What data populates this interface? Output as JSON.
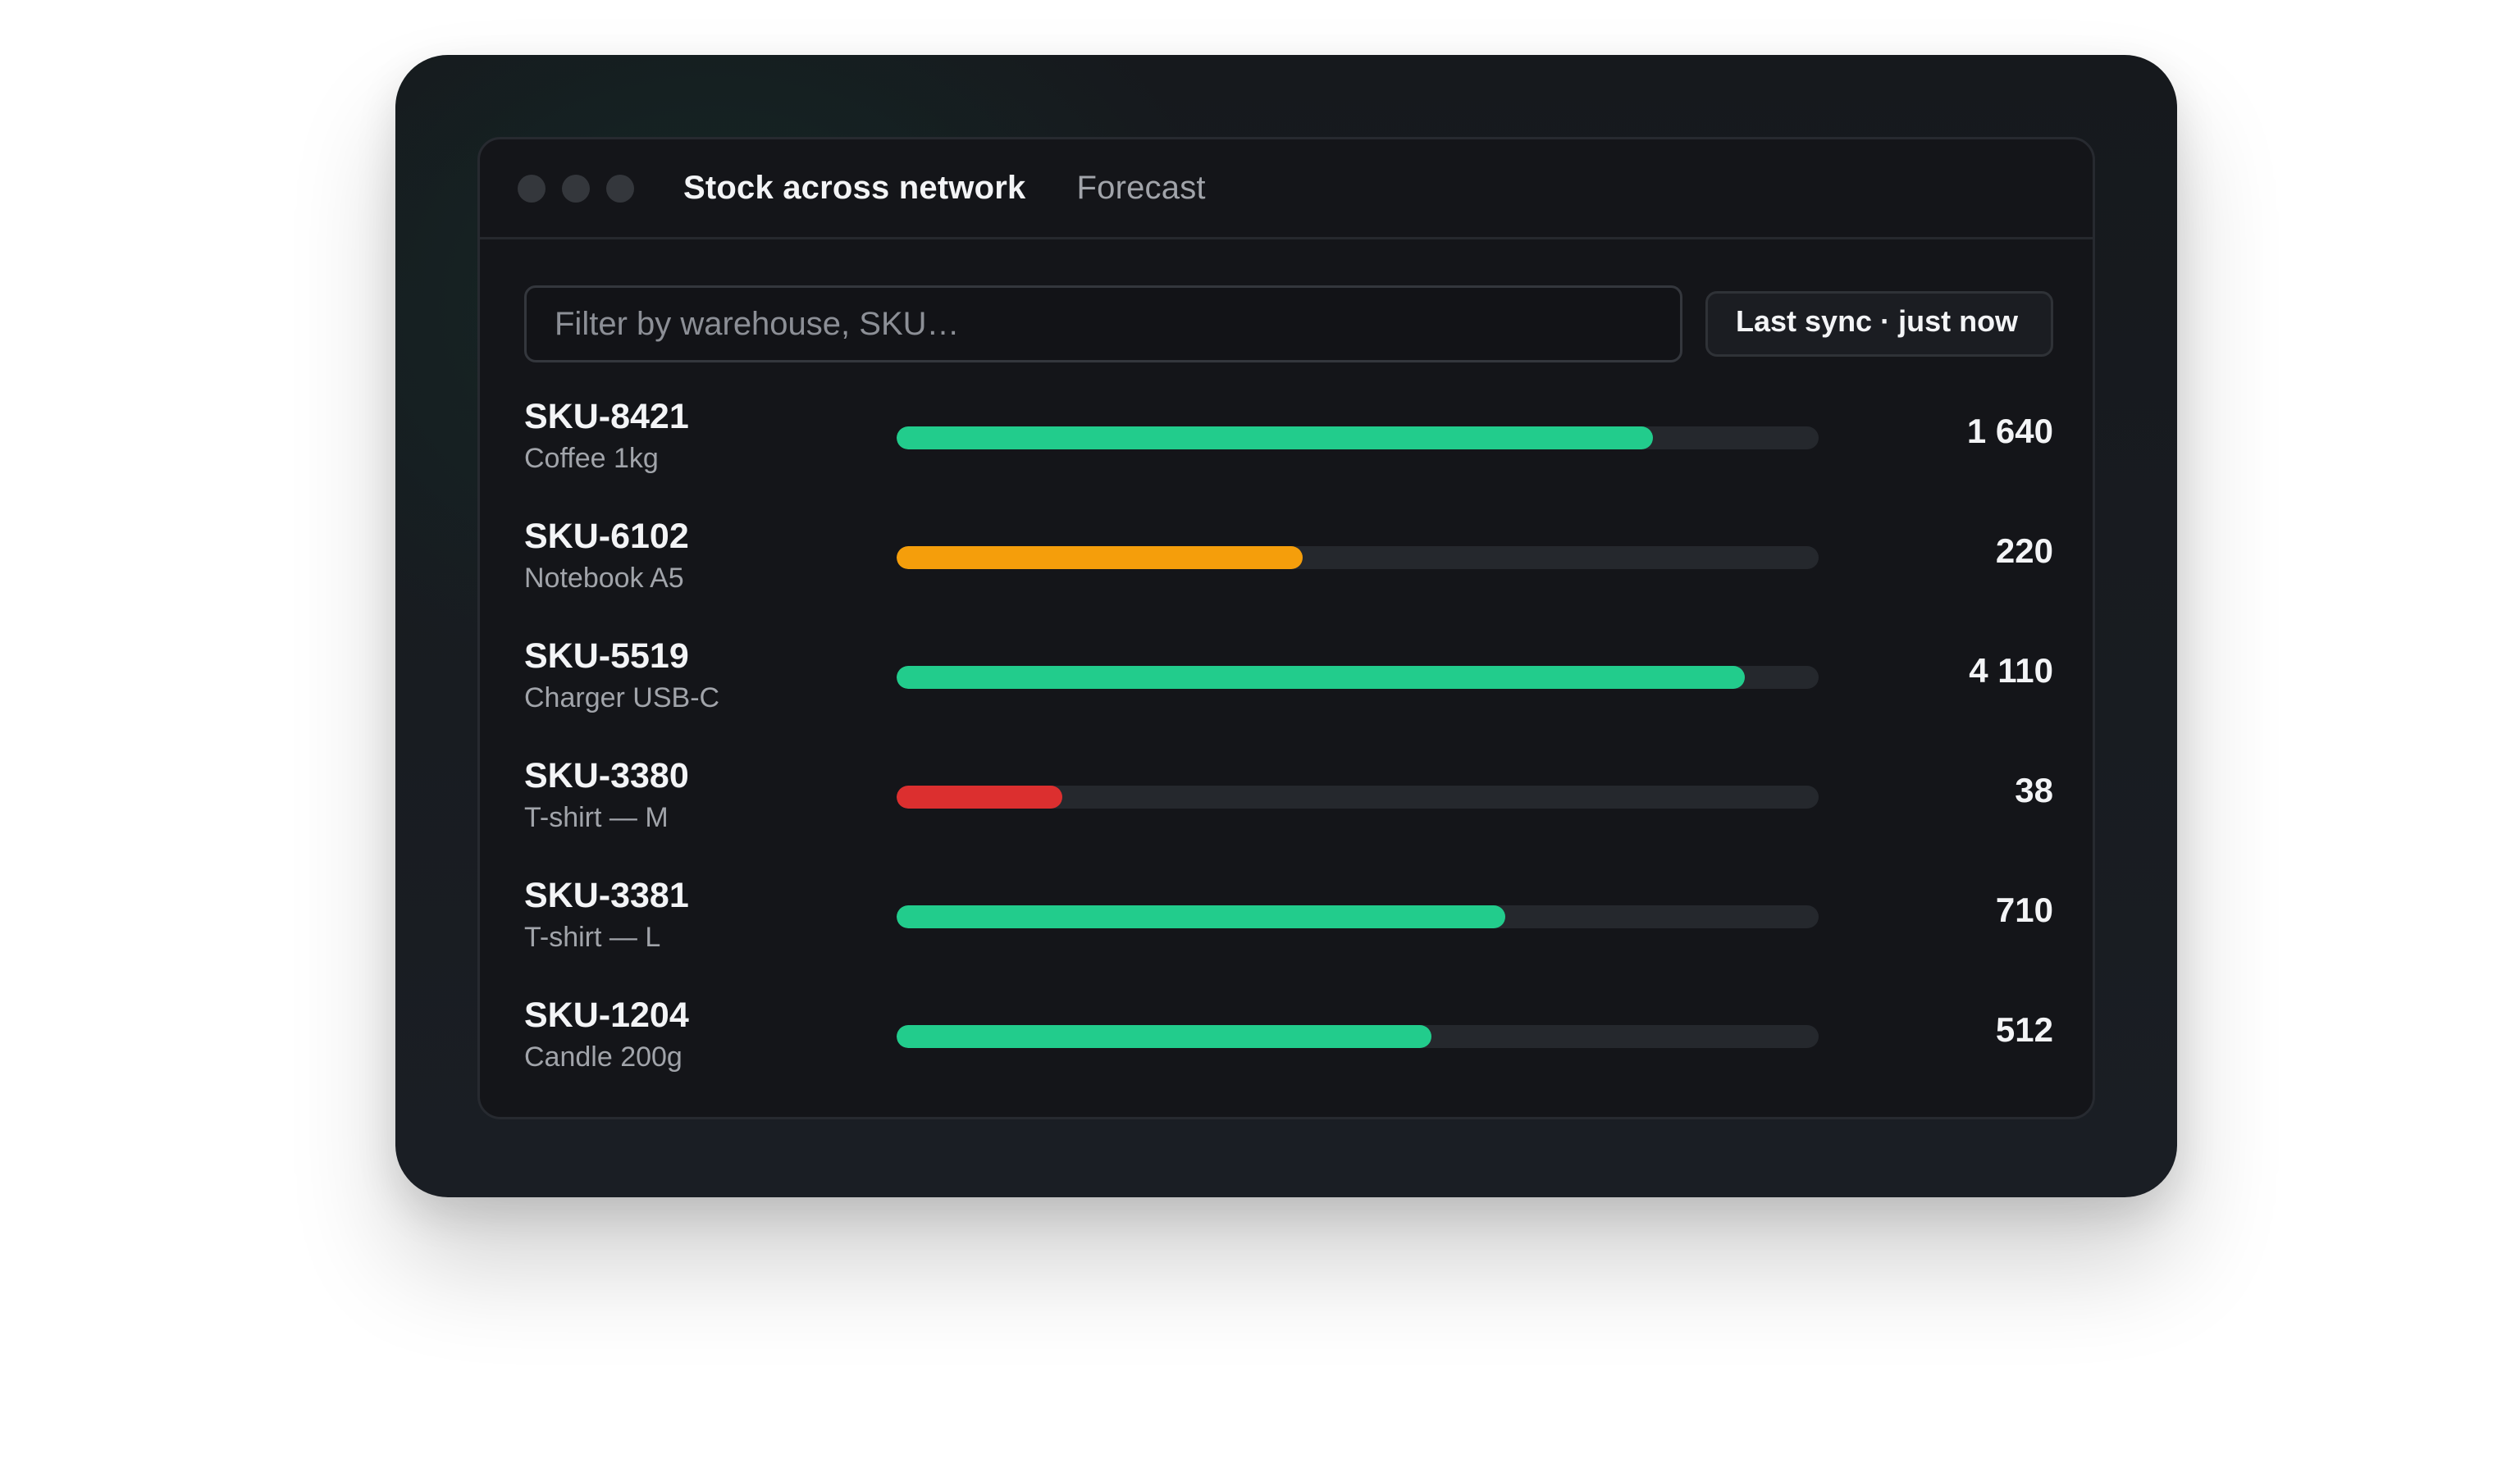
{
  "window": {
    "tabs": [
      {
        "label": "Stock across network",
        "active": true
      },
      {
        "label": "Forecast",
        "active": false
      }
    ]
  },
  "filter": {
    "placeholder": "Filter by warehouse, SKU…",
    "value": ""
  },
  "sync": {
    "label": "Last sync · just now"
  },
  "colors": {
    "ok": "#22cc8c",
    "low": "#f59e0b",
    "critical": "#dc2f2f",
    "track": "#25282d"
  },
  "items": [
    {
      "sku": "SKU-8421",
      "name": "Coffee 1kg",
      "qty": "1 640",
      "level": 0.82,
      "status": "ok"
    },
    {
      "sku": "SKU-6102",
      "name": "Notebook A5",
      "qty": "220",
      "level": 0.44,
      "status": "low"
    },
    {
      "sku": "SKU-5519",
      "name": "Charger USB-C",
      "qty": "4 110",
      "level": 0.92,
      "status": "ok"
    },
    {
      "sku": "SKU-3380",
      "name": "T-shirt — M",
      "qty": "38",
      "level": 0.18,
      "status": "critical"
    },
    {
      "sku": "SKU-3381",
      "name": "T-shirt — L",
      "qty": "710",
      "level": 0.66,
      "status": "ok"
    },
    {
      "sku": "SKU-1204",
      "name": "Candle 200g",
      "qty": "512",
      "level": 0.58,
      "status": "ok"
    }
  ]
}
